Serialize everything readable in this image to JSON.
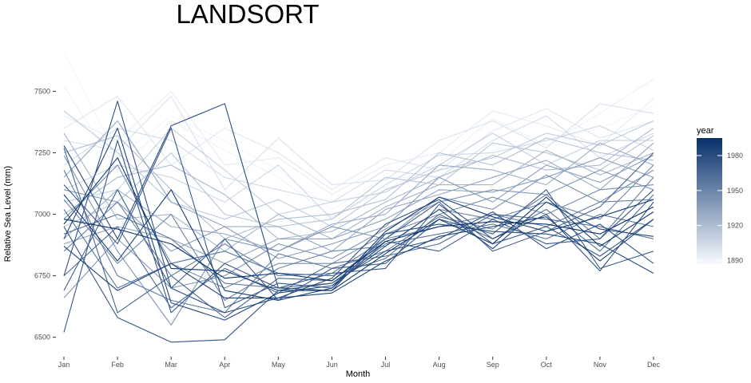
{
  "chart_data": {
    "type": "line",
    "title": "LANDSORT",
    "xlabel": "Month",
    "ylabel": "Relative Sea Level (mm)",
    "categories": [
      "Jan",
      "Feb",
      "Mar",
      "Apr",
      "May",
      "Jun",
      "Jul",
      "Aug",
      "Sep",
      "Oct",
      "Nov",
      "Dec"
    ],
    "y_ticks": [
      6500,
      6750,
      7000,
      7250,
      7500
    ],
    "ylim": [
      6460,
      7680
    ],
    "grid": false,
    "color_scale": {
      "title": "year",
      "min_year": 1887,
      "max_year": 1995,
      "low_color": "#f7fbff",
      "high_color": "#08306b",
      "tick_values": [
        1890,
        1920,
        1950,
        1980
      ],
      "tick_labels": [
        "1890",
        "1920",
        "1950",
        "1980"
      ],
      "placement": "right"
    },
    "series": [
      {
        "year": 1890,
        "values": [
          7660,
          7230,
          7400,
          7300,
          7180,
          7020,
          7150,
          7150,
          7260,
          7300,
          7350,
          7440
        ]
      },
      {
        "year": 1892,
        "values": [
          7520,
          7180,
          7380,
          7260,
          7150,
          6990,
          7100,
          7210,
          7390,
          7280,
          7410,
          7550
        ]
      },
      {
        "year": 1895,
        "values": [
          7400,
          7300,
          7500,
          7200,
          7230,
          7080,
          7200,
          7250,
          7420,
          7360,
          7280,
          7470
        ]
      },
      {
        "year": 1898,
        "values": [
          7350,
          7480,
          7200,
          7350,
          7250,
          7100,
          7230,
          7180,
          7340,
          7430,
          7310,
          7380
        ]
      },
      {
        "year": 1901,
        "values": [
          7300,
          7260,
          7480,
          7100,
          7310,
          7120,
          7140,
          7300,
          7380,
          7270,
          7450,
          7410
        ]
      },
      {
        "year": 1904,
        "values": [
          7200,
          7350,
          7300,
          7150,
          7100,
          7050,
          7180,
          7150,
          7300,
          7400,
          7230,
          7330
        ]
      },
      {
        "year": 1907,
        "values": [
          7100,
          7200,
          7150,
          7050,
          7200,
          6980,
          7120,
          7240,
          7250,
          7300,
          7360,
          7260
        ]
      },
      {
        "year": 1910,
        "values": [
          7050,
          7100,
          7350,
          7180,
          7000,
          7050,
          7090,
          7200,
          7330,
          7200,
          7300,
          7300
        ]
      },
      {
        "year": 1913,
        "values": [
          7420,
          7250,
          7050,
          6980,
          7060,
          6950,
          7100,
          7180,
          7230,
          7330,
          7280,
          7380
        ]
      },
      {
        "year": 1916,
        "values": [
          6950,
          7050,
          7250,
          7000,
          6950,
          6980,
          7150,
          7120,
          7290,
          7250,
          7180,
          7320
        ]
      },
      {
        "year": 1919,
        "values": [
          7250,
          7320,
          7100,
          6900,
          6980,
          7000,
          7060,
          7250,
          7200,
          7310,
          7250,
          7220
        ]
      },
      {
        "year": 1922,
        "values": [
          7000,
          7150,
          7200,
          7080,
          6900,
          6930,
          7050,
          7150,
          7240,
          7180,
          7200,
          7350
        ]
      },
      {
        "year": 1925,
        "values": [
          7330,
          6980,
          7000,
          6850,
          7000,
          6900,
          7030,
          7120,
          7120,
          7260,
          7160,
          7250
        ]
      },
      {
        "year": 1928,
        "values": [
          6900,
          7100,
          6950,
          6920,
          6850,
          6960,
          7000,
          7200,
          7180,
          7120,
          7290,
          7200
        ]
      },
      {
        "year": 1931,
        "values": [
          7150,
          7380,
          7050,
          6950,
          6950,
          6850,
          7020,
          7080,
          7150,
          7220,
          7100,
          7290
        ]
      },
      {
        "year": 1934,
        "values": [
          6880,
          6950,
          6900,
          6800,
          6900,
          6900,
          6980,
          7100,
          7090,
          7150,
          7230,
          7150
        ]
      },
      {
        "year": 1937,
        "values": [
          7100,
          7050,
          6850,
          6950,
          6820,
          6880,
          6950,
          7150,
          7050,
          7200,
          7130,
          7240
        ]
      },
      {
        "year": 1940,
        "values": [
          6660,
          6900,
          6700,
          6750,
          6880,
          6820,
          6940,
          7050,
          7100,
          7080,
          7180,
          7100
        ]
      },
      {
        "year": 1943,
        "values": [
          7240,
          6850,
          6550,
          6900,
          6850,
          6950,
          6900,
          7070,
          7020,
          7160,
          7050,
          7180
        ]
      },
      {
        "year": 1946,
        "values": [
          6980,
          7200,
          6800,
          6700,
          6800,
          6800,
          6920,
          7000,
          7070,
          7000,
          7100,
          7120
        ]
      },
      {
        "year": 1949,
        "values": [
          7060,
          6800,
          7000,
          6650,
          6780,
          6850,
          6870,
          7020,
          6980,
          7050,
          6980,
          7200
        ]
      },
      {
        "year": 1952,
        "values": [
          6850,
          7050,
          6750,
          6880,
          6750,
          6760,
          6900,
          6950,
          7000,
          6950,
          7050,
          7060
        ]
      },
      {
        "year": 1955,
        "values": [
          7180,
          6750,
          6650,
          6600,
          6840,
          6780,
          6850,
          6990,
          6940,
          7080,
          6900,
          7150
        ]
      },
      {
        "year": 1958,
        "values": [
          6920,
          7000,
          6900,
          6720,
          6700,
          6720,
          6880,
          6920,
          6960,
          6900,
          7000,
          6950
        ]
      },
      {
        "year": 1961,
        "values": [
          7020,
          6700,
          6800,
          6850,
          6760,
          6750,
          6820,
          7000,
          6900,
          7020,
          6850,
          7080
        ]
      },
      {
        "year": 1964,
        "values": [
          6750,
          6950,
          6620,
          6780,
          6680,
          6800,
          6830,
          6880,
          7000,
          6980,
          6950,
          6900
        ]
      },
      {
        "year": 1967,
        "values": [
          7270,
          6600,
          6750,
          6580,
          6740,
          6730,
          6900,
          7050,
          6850,
          6930,
          7030,
          7250
        ]
      },
      {
        "year": 1970,
        "values": [
          6690,
          7100,
          6700,
          6900,
          6650,
          6780,
          6800,
          6980,
          6920,
          7100,
          6780,
          6850
        ]
      },
      {
        "year": 1972,
        "values": [
          7120,
          6880,
          7350,
          6620,
          6720,
          6700,
          6890,
          6850,
          6980,
          6880,
          6900,
          7100
        ]
      },
      {
        "year": 1974,
        "values": [
          6520,
          7300,
          6600,
          6800,
          6700,
          6760,
          6780,
          7040,
          6880,
          6950,
          6830,
          6980
        ]
      },
      {
        "year": 1976,
        "values": [
          6950,
          6580,
          6480,
          6490,
          6690,
          6720,
          6850,
          6900,
          7010,
          6860,
          6960,
          6800
        ]
      },
      {
        "year": 1978,
        "values": [
          6750,
          7460,
          6700,
          6600,
          6660,
          6740,
          6960,
          7060,
          6900,
          7000,
          6770,
          7050
        ]
      },
      {
        "year": 1980,
        "values": [
          7280,
          6900,
          7360,
          7450,
          6700,
          6690,
          6920,
          6960,
          6930,
          6920,
          6880,
          6760
        ]
      },
      {
        "year": 1982,
        "values": [
          6900,
          7350,
          6640,
          6570,
          6680,
          6710,
          6870,
          7020,
          6860,
          7050,
          6940,
          6910
        ]
      },
      {
        "year": 1985,
        "values": [
          6870,
          6690,
          6800,
          6660,
          6660,
          6680,
          6810,
          6910,
          6950,
          6990,
          6810,
          6980
        ]
      },
      {
        "year": 1988,
        "values": [
          7080,
          6810,
          7100,
          6690,
          6650,
          6700,
          6930,
          7070,
          6990,
          6930,
          6990,
          7060
        ]
      },
      {
        "year": 1991,
        "values": [
          6960,
          7230,
          6780,
          6770,
          6690,
          6690,
          6840,
          6980,
          6880,
          7070,
          6870,
          7010
        ]
      },
      {
        "year": 1994,
        "values": [
          6980,
          6940,
          6880,
          6740,
          6760,
          6730,
          6890,
          6950,
          6970,
          6960,
          6920,
          7030
        ]
      }
    ]
  }
}
